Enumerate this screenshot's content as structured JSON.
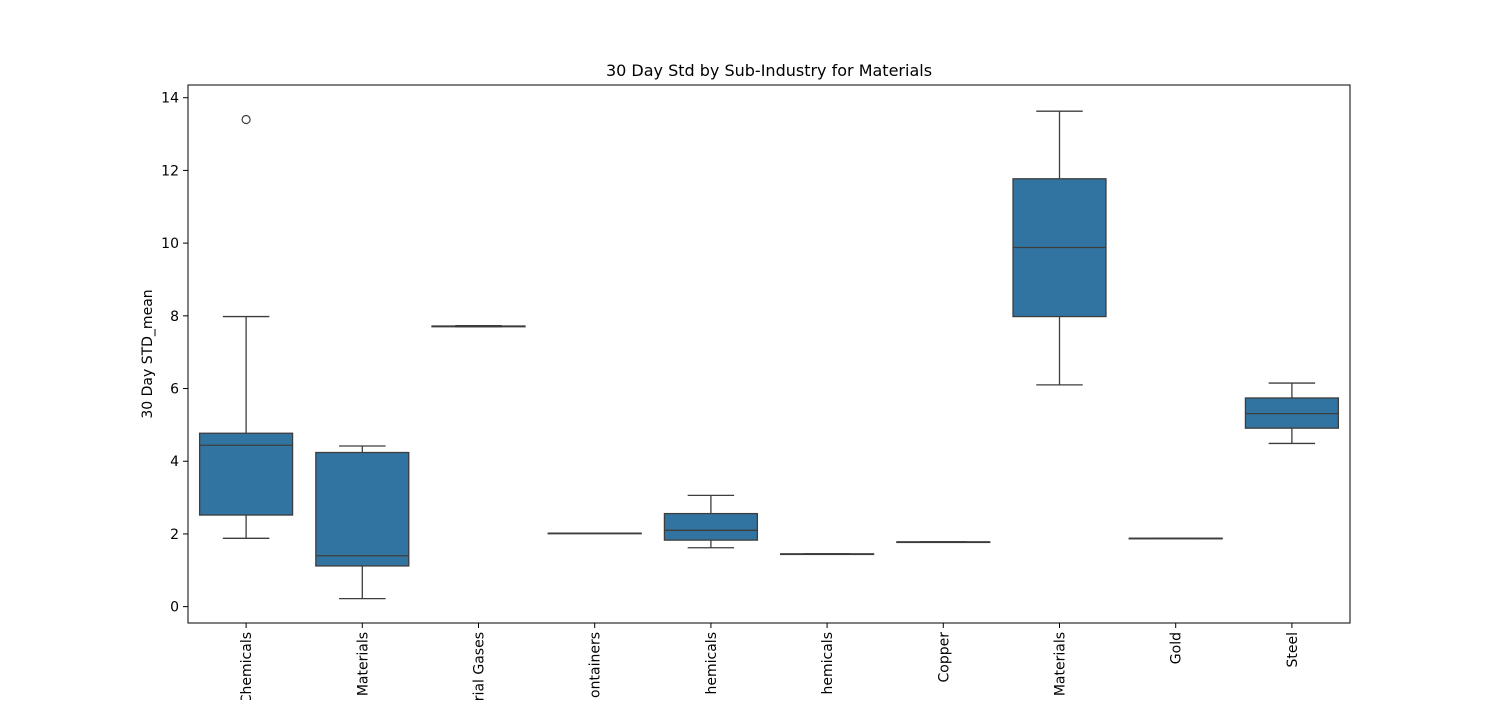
{
  "chart_data": {
    "type": "box",
    "title": "30 Day Std by Sub-Industry for Materials",
    "xlabel": "",
    "ylabel": "30 Day STD_mean",
    "ylim": [
      -0.45,
      14.35
    ],
    "yticks": [
      0,
      2,
      4,
      6,
      8,
      10,
      12,
      14
    ],
    "grid": false,
    "categories": [
      "Chemicals",
      "Materials",
      "rial Gases",
      "ontainers",
      "hemicals",
      "hemicals",
      "Copper",
      "Materials",
      "Gold",
      "Steel"
    ],
    "boxes": [
      {
        "whisker_low": 1.88,
        "q1": 2.52,
        "median": 4.44,
        "q3": 4.77,
        "whisker_high": 7.98,
        "outliers": [
          13.4
        ]
      },
      {
        "whisker_low": 0.22,
        "q1": 1.12,
        "median": 1.4,
        "q3": 4.24,
        "whisker_high": 4.42,
        "outliers": []
      },
      {
        "whisker_low": 7.7,
        "q1": 7.7,
        "median": 7.71,
        "q3": 7.72,
        "whisker_high": 7.73,
        "outliers": []
      },
      {
        "whisker_low": 2.02,
        "q1": 2.02,
        "median": 2.02,
        "q3": 2.02,
        "whisker_high": 2.02,
        "outliers": []
      },
      {
        "whisker_low": 1.62,
        "q1": 1.83,
        "median": 2.1,
        "q3": 2.56,
        "whisker_high": 3.06,
        "outliers": []
      },
      {
        "whisker_low": 1.45,
        "q1": 1.45,
        "median": 1.45,
        "q3": 1.45,
        "whisker_high": 1.45,
        "outliers": []
      },
      {
        "whisker_low": 1.78,
        "q1": 1.78,
        "median": 1.78,
        "q3": 1.78,
        "whisker_high": 1.78,
        "outliers": []
      },
      {
        "whisker_low": 6.1,
        "q1": 7.98,
        "median": 9.88,
        "q3": 11.77,
        "whisker_high": 13.63,
        "outliers": []
      },
      {
        "whisker_low": 1.88,
        "q1": 1.88,
        "median": 1.88,
        "q3": 1.88,
        "whisker_high": 1.88,
        "outliers": []
      },
      {
        "whisker_low": 4.49,
        "q1": 4.91,
        "median": 5.31,
        "q3": 5.74,
        "whisker_high": 6.15,
        "outliers": []
      }
    ],
    "colors": {
      "box_fill": "#3274a1",
      "line": "#3d3d3d",
      "axes": "#000000",
      "background": "#ffffff"
    }
  }
}
